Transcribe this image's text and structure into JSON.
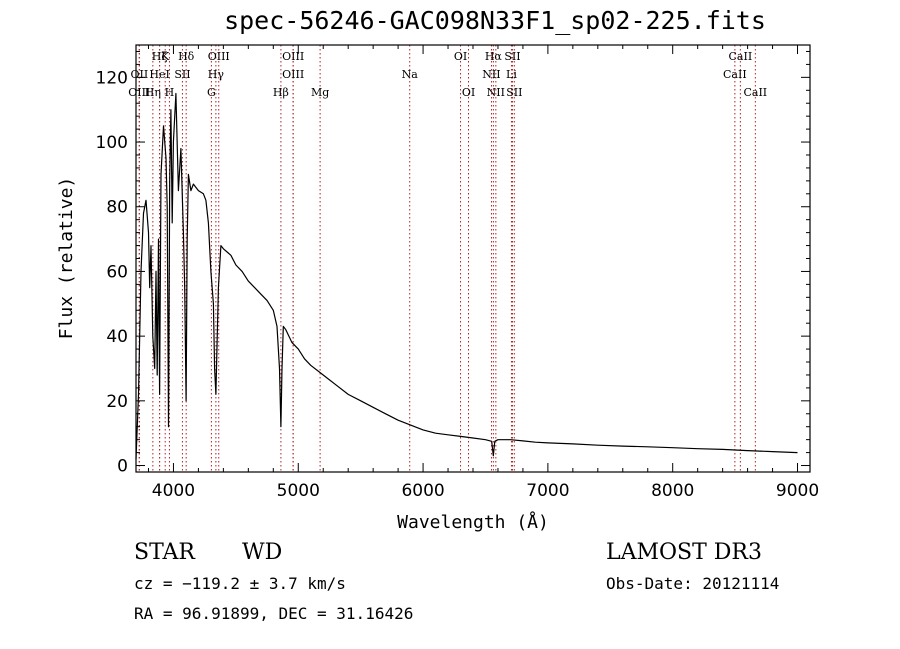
{
  "title": "spec-56246-GAC098N33F1_sp02-225.fits",
  "info": {
    "object_class": "STAR",
    "subclass": "WD",
    "survey": "LAMOST DR3",
    "cz": "cz = −119.2 ± 3.7 km/s",
    "obs_date": "Obs-Date: 20121114",
    "coords": "RA =  96.91899, DEC =  31.16426"
  },
  "chart_data": {
    "type": "line",
    "title": "spec-56246-GAC098N33F1_sp02-225.fits",
    "xlabel": "Wavelength (Å)",
    "ylabel": "Flux (relative)",
    "xlim": [
      3700,
      9100
    ],
    "ylim": [
      -2,
      130
    ],
    "xticks": [
      4000,
      5000,
      6000,
      7000,
      8000,
      9000
    ],
    "yticks": [
      0,
      20,
      40,
      60,
      80,
      100,
      120
    ],
    "colors": {
      "spectrum": "#000000",
      "lines": "#b22222"
    },
    "spectrum": {
      "x": [
        3700,
        3720,
        3740,
        3760,
        3780,
        3800,
        3810,
        3820,
        3835,
        3850,
        3860,
        3870,
        3880,
        3889,
        3900,
        3920,
        3940,
        3950,
        3960,
        3970,
        3980,
        3990,
        4000,
        4020,
        4040,
        4060,
        4080,
        4090,
        4101,
        4110,
        4120,
        4140,
        4160,
        4200,
        4240,
        4260,
        4280,
        4300,
        4320,
        4330,
        4340,
        4350,
        4360,
        4380,
        4400,
        4430,
        4460,
        4500,
        4550,
        4600,
        4650,
        4700,
        4750,
        4800,
        4830,
        4850,
        4861,
        4870,
        4880,
        4900,
        4950,
        5000,
        5050,
        5100,
        5200,
        5300,
        5400,
        5500,
        5600,
        5700,
        5800,
        5900,
        6000,
        6100,
        6200,
        6300,
        6400,
        6500,
        6550,
        6563,
        6575,
        6600,
        6700,
        6800,
        6900,
        7000,
        7200,
        7400,
        7600,
        7800,
        8000,
        8200,
        8400,
        8600,
        8800,
        9000
      ],
      "y": [
        2,
        22,
        60,
        78,
        82,
        72,
        55,
        68,
        40,
        30,
        60,
        28,
        70,
        22,
        90,
        105,
        95,
        80,
        12,
        88,
        110,
        75,
        100,
        115,
        85,
        98,
        72,
        55,
        20,
        70,
        90,
        85,
        87,
        85,
        84,
        82,
        75,
        60,
        50,
        30,
        22,
        38,
        55,
        68,
        67,
        66,
        65,
        62,
        60,
        57,
        55,
        53,
        51,
        48,
        43,
        30,
        12,
        30,
        43,
        42,
        38,
        36,
        33,
        31,
        28,
        25,
        22,
        20,
        18,
        16,
        14,
        12.5,
        11,
        10,
        9.5,
        9,
        8.5,
        8,
        7.5,
        3,
        7.5,
        8,
        8,
        7.6,
        7.2,
        7,
        6.7,
        6.3,
        6,
        5.8,
        5.5,
        5.2,
        5,
        4.6,
        4.3,
        4
      ]
    },
    "lines": [
      {
        "name": "Hζ",
        "wave": 3889,
        "row": 0
      },
      {
        "name": "K",
        "wave": 3934,
        "row": 0
      },
      {
        "name": "Hδ",
        "wave": 4102,
        "row": 0
      },
      {
        "name": "OIII",
        "wave": 4363,
        "row": 0
      },
      {
        "name": "OIII",
        "wave": 4959,
        "row": 0
      },
      {
        "name": "OI",
        "wave": 6300,
        "row": 0
      },
      {
        "name": "Hα",
        "wave": 6563,
        "row": 0
      },
      {
        "name": "SII",
        "wave": 6716,
        "row": 0
      },
      {
        "name": "CaII",
        "wave": 8542,
        "row": 0
      },
      {
        "name": "OII",
        "wave": 3727,
        "row": 1
      },
      {
        "name": "HeI",
        "wave": 3889,
        "row": 1
      },
      {
        "name": "SII",
        "wave": 4072,
        "row": 1
      },
      {
        "name": "Hγ",
        "wave": 4340,
        "row": 1
      },
      {
        "name": "OIII",
        "wave": 4959,
        "row": 1
      },
      {
        "name": "Na",
        "wave": 5893,
        "row": 1
      },
      {
        "name": "NII",
        "wave": 6548,
        "row": 1
      },
      {
        "name": "Li",
        "wave": 6708,
        "row": 1
      },
      {
        "name": "CaII",
        "wave": 8498,
        "row": 1
      },
      {
        "name": "OIII",
        "wave": 3726,
        "row": 2
      },
      {
        "name": "Hη",
        "wave": 3835,
        "row": 2
      },
      {
        "name": "H",
        "wave": 3968,
        "row": 2
      },
      {
        "name": "G",
        "wave": 4304,
        "row": 2
      },
      {
        "name": "Hβ",
        "wave": 4861,
        "row": 2
      },
      {
        "name": "Mg",
        "wave": 5175,
        "row": 2
      },
      {
        "name": "OI",
        "wave": 6364,
        "row": 2
      },
      {
        "name": "NII",
        "wave": 6583,
        "row": 2
      },
      {
        "name": "SII",
        "wave": 6731,
        "row": 2
      },
      {
        "name": "CaII",
        "wave": 8662,
        "row": 2
      }
    ]
  }
}
